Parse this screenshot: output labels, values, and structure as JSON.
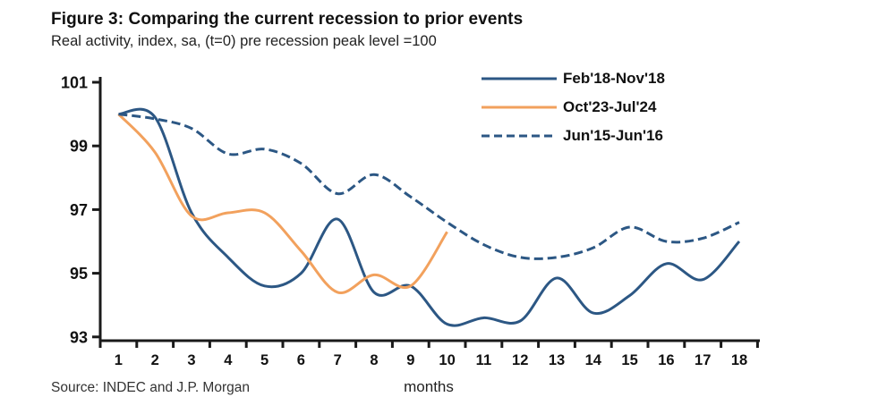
{
  "figure": {
    "title": "Figure 3: Comparing the current recession to prior events",
    "subtitle": "Real activity, index, sa, (t=0) pre recession peak level =100",
    "source": "Source: INDEC and J.P. Morgan",
    "xlabel": "months"
  },
  "colors": {
    "line_blue": "#2C5784",
    "line_orange": "#F2A15D",
    "axis": "#1a1a1a",
    "background": "#ffffff"
  },
  "legend": [
    {
      "label": "Feb'18-Nov'18",
      "style": "solid",
      "color": "#2C5784"
    },
    {
      "label": "Oct'23-Jul'24",
      "style": "solid",
      "color": "#F2A15D"
    },
    {
      "label": "Jun'15-Jun'16",
      "style": "dashed",
      "color": "#2C5784"
    }
  ],
  "chart_data": {
    "type": "line",
    "title": "Figure 3: Comparing the current recession to prior events",
    "subtitle": "Real activity, index, sa, (t=0) pre recession peak level =100",
    "xlabel": "months",
    "ylabel": "",
    "x": [
      1,
      2,
      3,
      4,
      5,
      6,
      7,
      8,
      9,
      10,
      11,
      12,
      13,
      14,
      15,
      16,
      17,
      18
    ],
    "xticklabels": [
      "1",
      "2",
      "3",
      "4",
      "5",
      "6",
      "7",
      "8",
      "9",
      "10",
      "11",
      "12",
      "13",
      "14",
      "15",
      "16",
      "17",
      "18"
    ],
    "ylim": [
      93,
      101
    ],
    "yticks": [
      93,
      95,
      97,
      99,
      101
    ],
    "grid": false,
    "legend_position": "top-right",
    "series": [
      {
        "name": "Feb'18-Nov'18",
        "style": "solid",
        "color": "#2C5784",
        "values": [
          100,
          99.9,
          96.9,
          95.5,
          94.6,
          95.0,
          96.7,
          94.4,
          94.6,
          93.4,
          93.6,
          93.5,
          94.85,
          93.75,
          94.3,
          95.3,
          94.8,
          96.0
        ]
      },
      {
        "name": "Oct'23-Jul'24",
        "style": "solid",
        "color": "#F2A15D",
        "values": [
          100,
          98.8,
          96.8,
          96.9,
          96.9,
          95.7,
          94.4,
          94.95,
          94.6,
          96.3
        ]
      },
      {
        "name": "Jun'15-Jun'16",
        "style": "dashed",
        "color": "#2C5784",
        "values": [
          100,
          99.85,
          99.55,
          98.75,
          98.9,
          98.45,
          97.5,
          98.1,
          97.4,
          96.6,
          95.9,
          95.5,
          95.5,
          95.8,
          96.45,
          96.0,
          96.1,
          96.6
        ]
      }
    ]
  }
}
